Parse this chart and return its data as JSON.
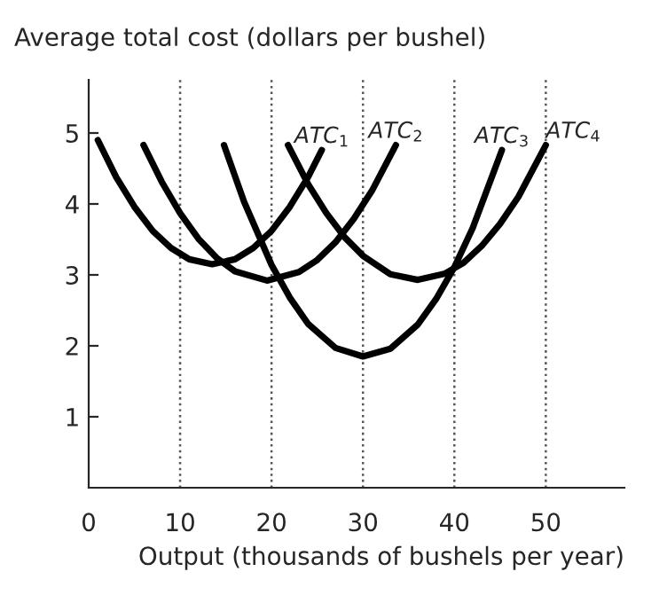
{
  "chart_data": {
    "type": "line",
    "xlabel": "Output (thousands of bushels per year)",
    "ylabel": "Average total cost (dollars per bushel)",
    "xlim": [
      0,
      58.6
    ],
    "ylim": [
      0,
      5.75
    ],
    "xticks": [
      0,
      10,
      20,
      30,
      40,
      50
    ],
    "yticks": [
      1,
      2,
      3,
      4,
      5
    ],
    "series": [
      {
        "name": "ATC$_{1}$",
        "color": "#000000",
        "x": [
          1,
          3,
          5,
          7,
          9,
          11,
          13.5,
          16,
          18,
          20,
          22,
          24,
          25.5
        ],
        "values": [
          4.9,
          4.38,
          3.96,
          3.62,
          3.38,
          3.22,
          3.15,
          3.22,
          3.38,
          3.62,
          3.96,
          4.38,
          4.76
        ]
      },
      {
        "name": "ATC$_{2}$",
        "color": "#000000",
        "x": [
          6,
          8,
          10,
          12,
          14,
          16,
          19.5,
          23,
          25,
          27,
          29,
          31,
          33.6
        ],
        "values": [
          4.83,
          4.31,
          3.87,
          3.51,
          3.24,
          3.05,
          2.92,
          3.04,
          3.21,
          3.46,
          3.79,
          4.19,
          4.83
        ]
      },
      {
        "name": "ATC$_{3}$",
        "color": "#000000",
        "x": [
          14.8,
          17,
          20,
          22,
          24,
          27,
          30,
          33,
          36,
          38,
          40,
          42,
          45.2
        ],
        "values": [
          4.83,
          4.03,
          3.14,
          2.68,
          2.31,
          1.97,
          1.85,
          1.96,
          2.3,
          2.66,
          3.11,
          3.66,
          4.76
        ]
      },
      {
        "name": "ATC$_{4}$",
        "color": "#000000",
        "x": [
          21.8,
          24,
          26,
          28,
          30,
          33,
          36,
          39,
          41,
          43,
          45,
          47,
          50
        ],
        "values": [
          4.83,
          4.28,
          3.87,
          3.53,
          3.27,
          3.01,
          2.93,
          3.02,
          3.17,
          3.41,
          3.72,
          4.1,
          4.83
        ]
      }
    ],
    "ref_lines": [
      {
        "axis": "x",
        "value": 10,
        "line_style": "dotted",
        "color": "#555555"
      },
      {
        "axis": "x",
        "value": 20,
        "line_style": "dotted",
        "color": "#555555"
      },
      {
        "axis": "x",
        "value": 30,
        "line_style": "dotted",
        "color": "#555555"
      },
      {
        "axis": "x",
        "value": 40,
        "line_style": "dotted",
        "color": "#555555"
      },
      {
        "axis": "x",
        "value": 50,
        "line_style": "dotted",
        "color": "#555555"
      }
    ],
    "grid": false,
    "legend": false,
    "marker": "none",
    "line_style": "solid"
  }
}
